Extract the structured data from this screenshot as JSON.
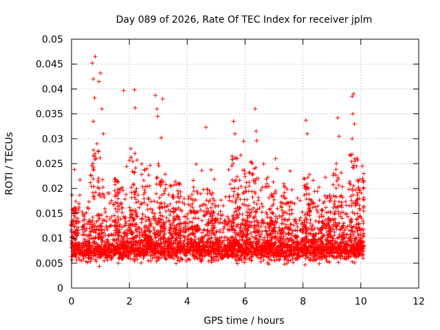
{
  "chart_data": {
    "type": "scatter",
    "title": "Day 089 of 2026, Rate Of TEC Index for receiver jplm",
    "xlabel": "GPS time / hours",
    "ylabel": "ROTI / TECUs",
    "xlim": [
      0,
      12
    ],
    "ylim": [
      0,
      0.05
    ],
    "xticks": [
      0,
      2,
      4,
      6,
      8,
      10,
      12
    ],
    "xtick_labels": [
      "0",
      "2",
      "4",
      "6",
      "8",
      "10",
      "12"
    ],
    "yticks": [
      0,
      0.005,
      0.01,
      0.015,
      0.02,
      0.025,
      0.03,
      0.035,
      0.04,
      0.045,
      0.05
    ],
    "ytick_labels": [
      "0",
      "0.005",
      "0.01",
      "0.015",
      "0.02",
      "0.025",
      "0.03",
      "0.035",
      "0.04",
      "0.045",
      "0.05"
    ],
    "grid": true,
    "marker": "plus",
    "color": "#ff0000",
    "series": [
      {
        "name": "ROTI",
        "x_range": [
          0,
          10.1
        ],
        "notable_points": [
          [
            0.02,
            0.0187
          ],
          [
            0.72,
            0.0452
          ],
          [
            0.75,
            0.042
          ],
          [
            0.82,
            0.0465
          ],
          [
            0.8,
            0.0382
          ],
          [
            0.88,
            0.029
          ],
          [
            0.95,
            0.0415
          ],
          [
            1.0,
            0.0432
          ],
          [
            1.05,
            0.036
          ],
          [
            1.1,
            0.031
          ],
          [
            0.75,
            0.0335
          ],
          [
            0.85,
            0.026
          ],
          [
            1.8,
            0.0397
          ],
          [
            2.18,
            0.0398
          ],
          [
            2.2,
            0.0362
          ],
          [
            2.05,
            0.028
          ],
          [
            2.9,
            0.0387
          ],
          [
            2.95,
            0.036
          ],
          [
            3.15,
            0.038
          ],
          [
            3.1,
            0.0302
          ],
          [
            2.98,
            0.0345
          ],
          [
            3.0,
            0.025
          ],
          [
            4.65,
            0.0323
          ],
          [
            4.5,
            0.0236
          ],
          [
            5.6,
            0.0335
          ],
          [
            5.65,
            0.031
          ],
          [
            5.55,
            0.0265
          ],
          [
            5.85,
            0.0267
          ],
          [
            5.95,
            0.0295
          ],
          [
            6.35,
            0.036
          ],
          [
            6.38,
            0.0315
          ],
          [
            6.4,
            0.0296
          ],
          [
            6.25,
            0.025
          ],
          [
            7.05,
            0.026
          ],
          [
            7.1,
            0.024
          ],
          [
            8.1,
            0.0337
          ],
          [
            8.15,
            0.031
          ],
          [
            9.2,
            0.0342
          ],
          [
            9.25,
            0.0305
          ],
          [
            9.15,
            0.025
          ],
          [
            9.7,
            0.0385
          ],
          [
            9.75,
            0.039
          ],
          [
            9.72,
            0.035
          ],
          [
            9.78,
            0.033
          ],
          [
            9.7,
            0.03
          ],
          [
            9.8,
            0.0255
          ],
          [
            10.05,
            0.0245
          ],
          [
            10.1,
            0.023
          ]
        ]
      }
    ]
  }
}
